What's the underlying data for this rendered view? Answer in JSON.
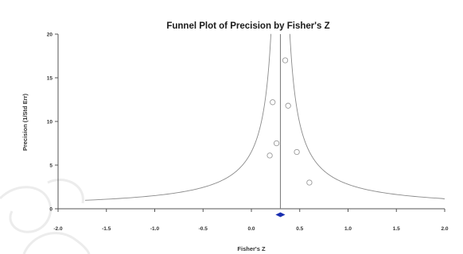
{
  "chart_data": {
    "type": "scatter",
    "title": "Funnel Plot of Precision by Fisher's Z",
    "xlabel": "Fisher's Z",
    "ylabel": "Precision (1/Std Err)",
    "xlim": [
      -2.0,
      2.0
    ],
    "ylim": [
      0,
      20
    ],
    "x_ticks": [
      "-2.0",
      "-1.5",
      "-1.0",
      "-0.5",
      "0.0",
      "0.5",
      "1.0",
      "1.5",
      "2.0"
    ],
    "y_ticks": [
      "0",
      "5",
      "10",
      "15",
      "20"
    ],
    "summary_effect": 0.3,
    "summary_ci": [
      0.25,
      0.35
    ],
    "points": [
      {
        "x": 0.35,
        "y": 17.0
      },
      {
        "x": 0.22,
        "y": 12.2
      },
      {
        "x": 0.38,
        "y": 11.8
      },
      {
        "x": 0.26,
        "y": 7.5
      },
      {
        "x": 0.47,
        "y": 6.5
      },
      {
        "x": 0.19,
        "y": 6.1
      },
      {
        "x": 0.6,
        "y": 3.0
      }
    ],
    "grid": false,
    "legend": "none",
    "colors": {
      "points": "#9a9a9a",
      "funnel": "#8a8a8a",
      "diamond": "#1a2fb0"
    }
  }
}
